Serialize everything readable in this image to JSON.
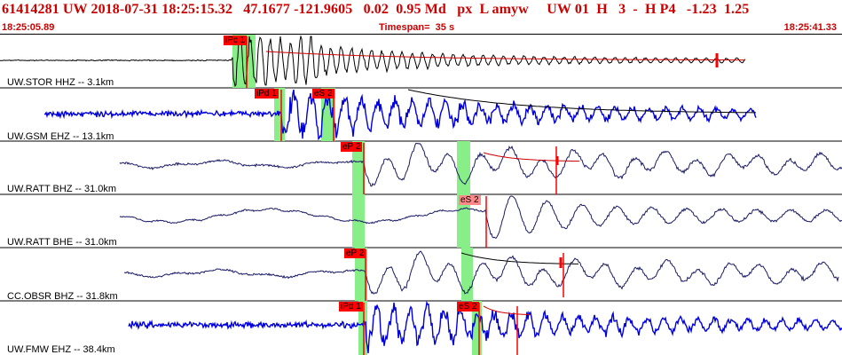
{
  "header": {
    "title": "61414281 UW 2018-07-31 18:25:15.32   47.1677 -121.9605   0.02  0.95 Md   px  L amyw     UW 01  H   3  -  H P4   -1.23  1.25",
    "start_time": "18:25:05.89",
    "timespan": "Timespan=  35 s",
    "end_time": "18:25:41.33"
  },
  "colors": {
    "header_text": "#cc0000",
    "trace_short_period": "#0000dd",
    "trace_broadband": "#1a1a66",
    "pick_box": "#ff0000",
    "pick_box_soft": "#ff8888",
    "pick_window": "#88ee88",
    "coda_fit": "#cc0000"
  },
  "panels": [
    {
      "label": "UW.STOR HHZ -- 3.1km",
      "trace_color": "black",
      "picks": [
        {
          "label": "iPc 1",
          "style": "solid"
        }
      ]
    },
    {
      "label": "UW.GSM EHZ -- 13.1km",
      "trace_color": "blue",
      "picks": [
        {
          "label": "iPd 1",
          "style": "solid"
        },
        {
          "label": "eS 2",
          "style": "solid"
        }
      ]
    },
    {
      "label": "UW.RATT BHZ -- 31.0km",
      "trace_color": "navy",
      "picks": [
        {
          "label": "eP 2",
          "style": "solid"
        }
      ]
    },
    {
      "label": "UW.RATT BHE -- 31.0km",
      "trace_color": "navy",
      "picks": [
        {
          "label": "eS 2",
          "style": "soft"
        }
      ]
    },
    {
      "label": "CC.OBSR BHZ -- 31.8km",
      "trace_color": "navy",
      "picks": [
        {
          "label": "eP 2",
          "style": "solid"
        }
      ]
    },
    {
      "label": "UW.FMW EHZ -- 38.4km",
      "trace_color": "blue",
      "picks": [
        {
          "label": "iPd 1",
          "style": "solid"
        },
        {
          "label": "eS 2",
          "style": "solid"
        }
      ]
    }
  ]
}
